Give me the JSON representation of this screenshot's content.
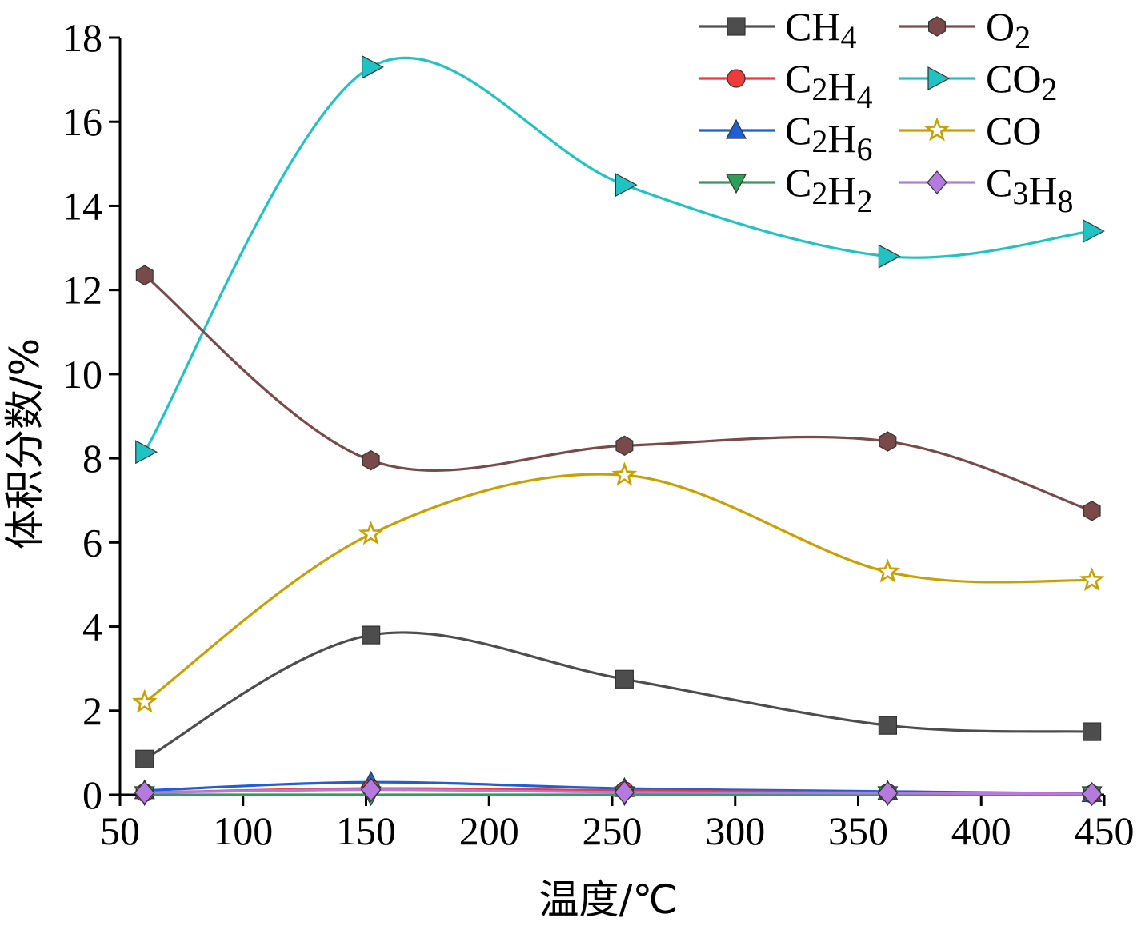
{
  "chart_data": {
    "type": "line",
    "title": "",
    "xlabel": "温度/℃",
    "ylabel": "体积分数/%",
    "xlim": [
      50,
      450
    ],
    "ylim": [
      0,
      18
    ],
    "xticks": [
      50,
      100,
      150,
      200,
      250,
      300,
      350,
      400,
      450
    ],
    "yticks": [
      0,
      2,
      4,
      6,
      8,
      10,
      12,
      14,
      16,
      18
    ],
    "x": [
      60,
      152,
      255,
      362,
      445
    ],
    "legend_position": "top-right",
    "grid": false,
    "series": [
      {
        "name": "CH4",
        "base": "CH",
        "sub": "4",
        "color": "#4d4d4d",
        "marker": "square",
        "values": [
          0.85,
          3.8,
          2.75,
          1.65,
          1.5
        ]
      },
      {
        "name": "O2",
        "base": "O",
        "sub": "2",
        "color": "#7a4a4a",
        "marker": "hexagon",
        "values": [
          12.35,
          7.95,
          8.3,
          8.4,
          6.75
        ]
      },
      {
        "name": "C2H4",
        "base": "C",
        "sub": "2",
        "tail": "H",
        "sub2": "4",
        "color": "#f03a3a",
        "marker": "circle",
        "values": [
          0.05,
          0.15,
          0.1,
          0.05,
          0.02
        ]
      },
      {
        "name": "CO2",
        "base": "CO",
        "sub": "2",
        "color": "#1fc3c3",
        "marker": "triangle-right",
        "values": [
          8.15,
          17.3,
          14.5,
          12.8,
          13.4
        ]
      },
      {
        "name": "C2H6",
        "base": "C",
        "sub": "2",
        "tail": "H",
        "sub2": "6",
        "color": "#1f5fd6",
        "marker": "triangle-up",
        "values": [
          0.1,
          0.3,
          0.15,
          0.08,
          0.03
        ]
      },
      {
        "name": "CO",
        "base": "CO",
        "sub": "",
        "color": "#c9a000",
        "marker": "star",
        "values": [
          2.2,
          6.2,
          7.6,
          5.3,
          5.1
        ]
      },
      {
        "name": "C2H2",
        "base": "C",
        "sub": "2",
        "tail": "H",
        "sub2": "2",
        "color": "#2e9e58",
        "marker": "triangle-down",
        "values": [
          0.0,
          0.0,
          0.0,
          0.0,
          0.0
        ]
      },
      {
        "name": "C3H8",
        "base": "C",
        "sub": "3",
        "tail": "H",
        "sub2": "8",
        "color": "#b57ae0",
        "marker": "diamond",
        "values": [
          0.05,
          0.12,
          0.06,
          0.04,
          0.02
        ]
      }
    ]
  }
}
